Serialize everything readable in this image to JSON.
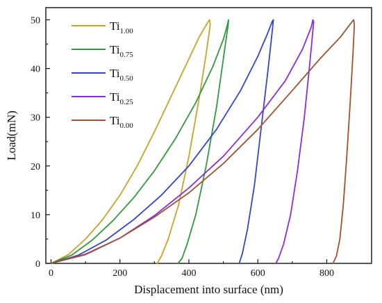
{
  "chart_data": {
    "type": "line",
    "xlabel": "Displacement into surface (nm)",
    "ylabel": "Load(mN)",
    "xlim": [
      -15,
      930
    ],
    "ylim": [
      0,
      52.5
    ],
    "xticks": [
      0,
      200,
      400,
      600,
      800
    ],
    "yticks": [
      0,
      10,
      20,
      30,
      40,
      50
    ],
    "grid": false,
    "legend": "top-left",
    "series": [
      {
        "label_main": "Ti",
        "label_sub": "1.00",
        "color": "#c9a227",
        "x": [
          0,
          50,
          100,
          150,
          200,
          250,
          300,
          350,
          400,
          430,
          455,
          460,
          462,
          450,
          430,
          400,
          370,
          340,
          320,
          308
        ],
        "y": [
          0,
          1.8,
          5,
          9,
          14,
          20,
          27,
          34.5,
          42,
          46.5,
          49.5,
          50,
          49,
          43,
          34,
          22,
          12,
          5,
          1.5,
          0
        ]
      },
      {
        "label_main": "Ti",
        "label_sub": "0.75",
        "color": "#2e9a3a",
        "x": [
          0,
          60,
          120,
          180,
          240,
          300,
          360,
          420,
          470,
          500,
          512,
          515,
          514,
          500,
          480,
          450,
          420,
          395,
          380,
          368
        ],
        "y": [
          0,
          1.7,
          4.8,
          8.8,
          13.5,
          19,
          25.5,
          33,
          40.5,
          46,
          49,
          50,
          49,
          42,
          32,
          20,
          10,
          4,
          1,
          0
        ]
      },
      {
        "label_main": "Ti",
        "label_sub": "0.50",
        "color": "#3344cc",
        "x": [
          0,
          80,
          160,
          240,
          320,
          400,
          480,
          550,
          600,
          630,
          642,
          645,
          643,
          630,
          610,
          590,
          570,
          555,
          546
        ],
        "y": [
          0,
          1.7,
          4.8,
          9,
          14,
          20,
          27.5,
          35.5,
          42.5,
          47.5,
          49.7,
          50,
          48.5,
          40,
          28,
          16,
          7,
          2,
          0
        ]
      },
      {
        "label_main": "Ti",
        "label_sub": "0.25",
        "color": "#8a2be2",
        "x": [
          0,
          100,
          200,
          300,
          400,
          500,
          600,
          680,
          730,
          755,
          760,
          762,
          752,
          735,
          715,
          695,
          675,
          660,
          652
        ],
        "y": [
          0,
          1.8,
          5.2,
          9.8,
          15.5,
          22,
          30,
          37.5,
          44,
          48.5,
          50,
          49.5,
          42,
          30,
          19,
          10,
          4,
          1,
          0
        ]
      },
      {
        "label_main": "Ti",
        "label_sub": "0.00",
        "color": "#a0522d",
        "x": [
          0,
          100,
          200,
          300,
          400,
          500,
          600,
          700,
          780,
          840,
          870,
          878,
          880,
          876,
          868,
          858,
          848,
          838,
          828,
          818
        ],
        "y": [
          0,
          1.9,
          5.2,
          9.5,
          14.5,
          20.5,
          27.5,
          35.5,
          42,
          46.5,
          49.3,
          50,
          49,
          43,
          33,
          22,
          12,
          5,
          1.5,
          0
        ]
      }
    ]
  }
}
